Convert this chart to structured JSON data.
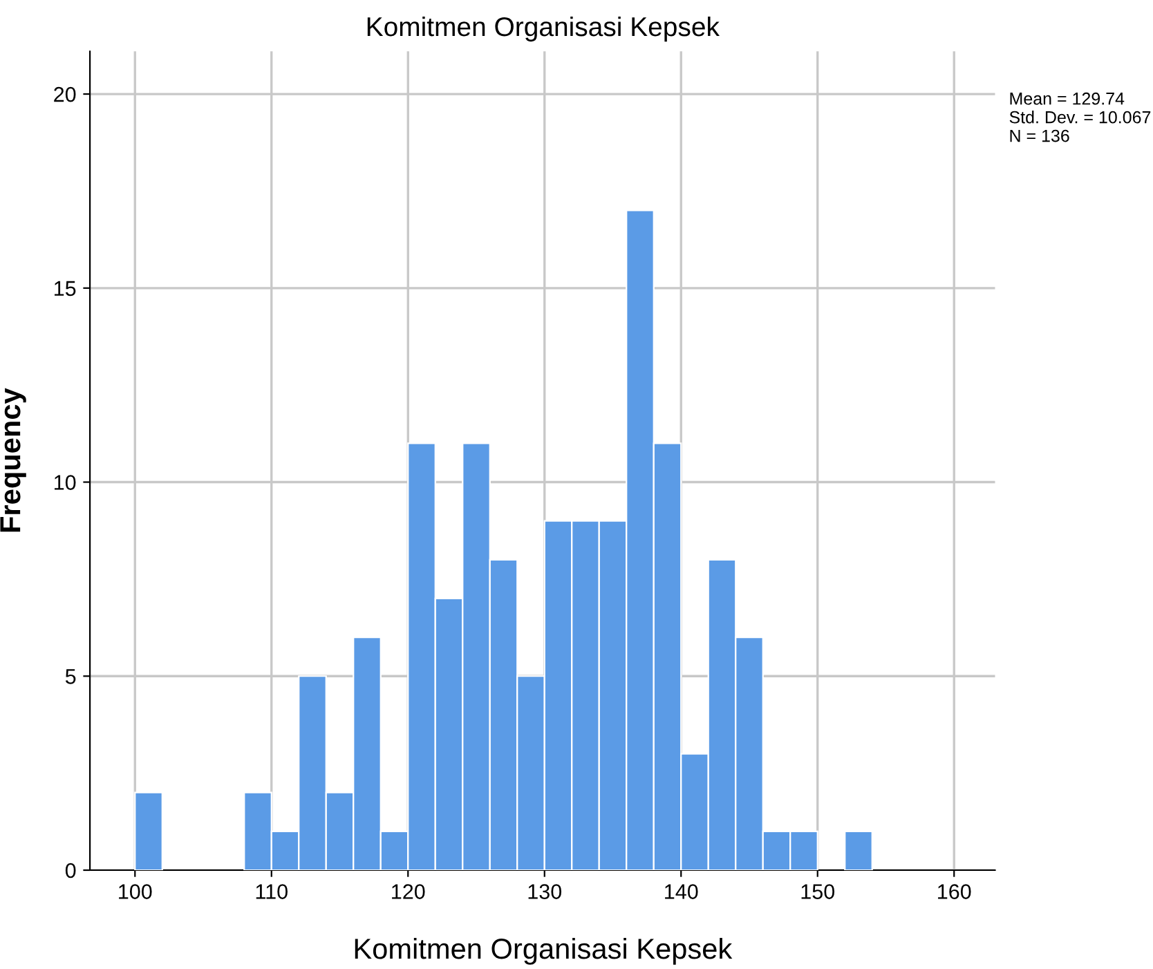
{
  "chart_data": {
    "type": "histogram",
    "title": "Komitmen Organisasi Kepsek",
    "xlabel": "Komitmen Organisasi Kepsek",
    "ylabel": "Frequency",
    "bins": [
      100,
      102,
      104,
      106,
      108,
      110,
      112,
      114,
      116,
      118,
      120,
      122,
      124,
      126,
      128,
      130,
      132,
      134,
      136,
      138,
      140,
      142,
      144,
      146,
      148,
      150,
      152,
      154
    ],
    "values": [
      2,
      0,
      0,
      0,
      2,
      1,
      5,
      2,
      6,
      1,
      11,
      7,
      11,
      8,
      5,
      9,
      9,
      9,
      17,
      11,
      3,
      8,
      6,
      1,
      1,
      0,
      1
    ],
    "color": "#5b9be6",
    "xlim": [
      96.7,
      163
    ],
    "xticks": [
      100,
      110,
      120,
      130,
      140,
      150,
      160
    ],
    "ylim": [
      0,
      21.1
    ],
    "yticks": [
      0,
      5,
      10,
      15,
      20
    ],
    "grid": true,
    "annotations": [
      "Mean = 129.74\nStd. Dev. = 10.067\nN = 136"
    ]
  }
}
